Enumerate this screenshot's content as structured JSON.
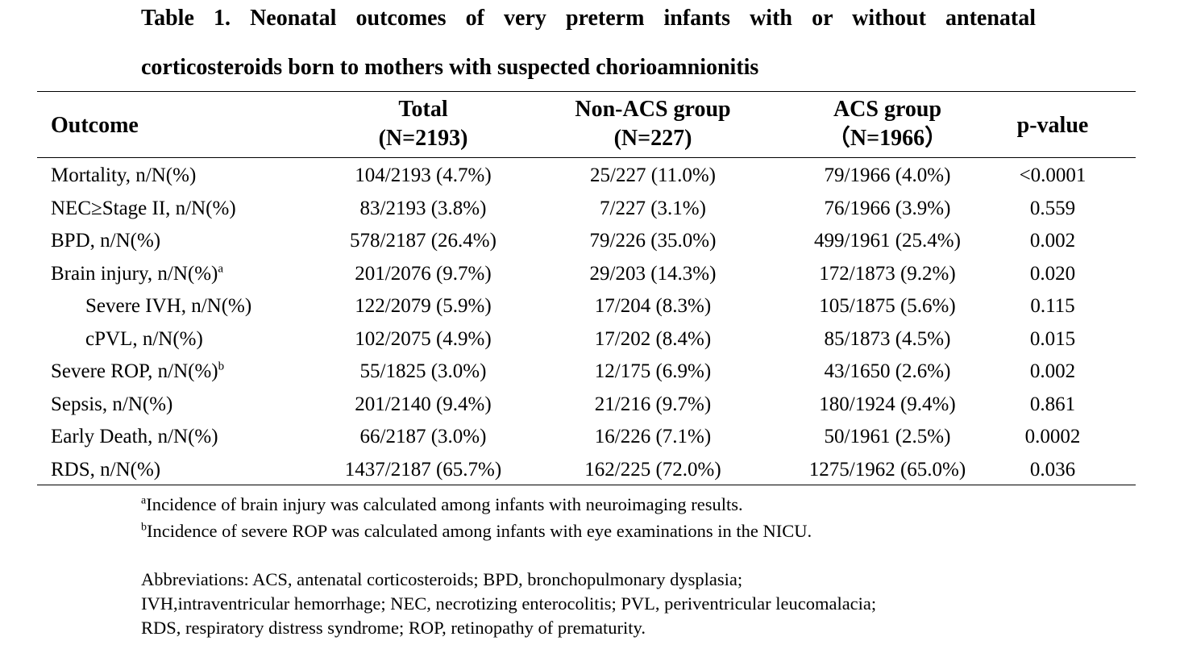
{
  "title": {
    "line1": "Table 1. Neonatal outcomes of very preterm infants with or without antenatal",
    "line2": "corticosteroids born to mothers with suspected chorioamnionitis"
  },
  "columns": {
    "outcome": "Outcome",
    "total": {
      "line1": "Total",
      "line2": "(N=2193)"
    },
    "nonacs": {
      "line1": "Non-ACS group",
      "line2": "(N=227)"
    },
    "acs": {
      "line1": "ACS group",
      "line2": "（N=1966）"
    },
    "p": "p-value"
  },
  "rows": [
    {
      "outcome": "Mortality, n/N(%)",
      "sup": "",
      "total": "104/2193 (4.7%)",
      "nonacs": "25/227 (11.0%)",
      "acs": "79/1966 (4.0%)",
      "p": "<0.0001"
    },
    {
      "outcome": "NEC≥Stage II, n/N(%)",
      "sup": "",
      "total": "83/2193 (3.8%)",
      "nonacs": "7/227 (3.1%)",
      "acs": "76/1966 (3.9%)",
      "p": "0.559"
    },
    {
      "outcome": "BPD, n/N(%)",
      "sup": "",
      "total": "578/2187 (26.4%)",
      "nonacs": "79/226 (35.0%)",
      "acs": "499/1961 (25.4%)",
      "p": "0.002"
    },
    {
      "outcome": "Brain injury, n/N(%)",
      "sup": "a",
      "total": "201/2076 (9.7%)",
      "nonacs": "29/203 (14.3%)",
      "acs": "172/1873 (9.2%)",
      "p": "0.020"
    },
    {
      "outcome": "Severe IVH, n/N(%)",
      "sup": "",
      "total": "122/2079 (5.9%)",
      "nonacs": "17/204 (8.3%)",
      "acs": "105/1875 (5.6%)",
      "p": "0.115"
    },
    {
      "outcome": "cPVL, n/N(%)",
      "sup": "",
      "total": "102/2075 (4.9%)",
      "nonacs": "17/202 (8.4%)",
      "acs": "85/1873 (4.5%)",
      "p": "0.015"
    },
    {
      "outcome": "Severe ROP, n/N(%)",
      "sup": "b",
      "total": "55/1825 (3.0%)",
      "nonacs": "12/175 (6.9%)",
      "acs": "43/1650 (2.6%)",
      "p": "0.002"
    },
    {
      "outcome": "Sepsis, n/N(%)",
      "sup": "",
      "total": "201/2140 (9.4%)",
      "nonacs": "21/216 (9.7%)",
      "acs": "180/1924 (9.4%)",
      "p": "0.861"
    },
    {
      "outcome": "Early Death, n/N(%)",
      "sup": "",
      "total": "66/2187 (3.0%)",
      "nonacs": "16/226 (7.1%)",
      "acs": "50/1961 (2.5%)",
      "p": "0.0002"
    },
    {
      "outcome": "RDS, n/N(%)",
      "sup": "",
      "total": "1437/2187 (65.7%)",
      "nonacs": "162/225 (72.0%)",
      "acs": "1275/1962 (65.0%)",
      "p": "0.036"
    }
  ],
  "footnotes": {
    "a_mark": "a",
    "a_text": "Incidence of brain injury was calculated among infants with neuroimaging results.",
    "b_mark": "b",
    "b_text": "Incidence of severe ROP was calculated among infants with eye examinations in the NICU."
  },
  "abbreviations": {
    "line1": "Abbreviations: ACS, antenatal corticosteroids; BPD, bronchopulmonary dysplasia;",
    "line2": "IVH,intraventricular hemorrhage; NEC, necrotizing enterocolitis; PVL, periventricular leucomalacia;",
    "line3": "RDS, respiratory distress syndrome; ROP, retinopathy of prematurity."
  }
}
